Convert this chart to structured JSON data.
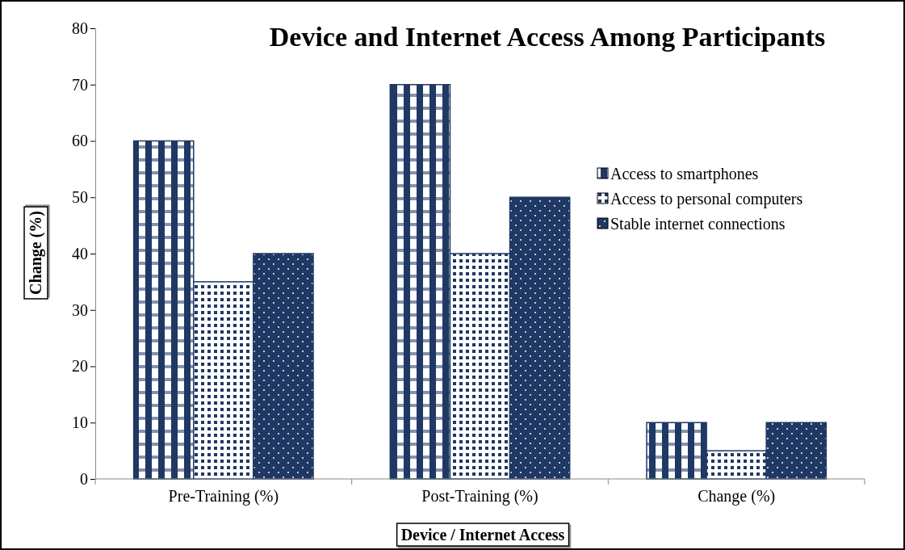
{
  "chart_data": {
    "type": "bar",
    "title": "Device and Internet Access Among Participants",
    "xlabel": "Device / Internet Access",
    "ylabel": "Change (%)",
    "categories": [
      "Pre-Training (%)",
      "Post-Training (%)",
      "Change (%)"
    ],
    "series": [
      {
        "name": "Access to smartphones",
        "color": "#1f3864",
        "values": [
          60,
          70,
          10
        ]
      },
      {
        "name": "Access to personal computers",
        "color": "#1f3864",
        "values": [
          35,
          40,
          5
        ]
      },
      {
        "name": "Stable internet connections",
        "color": "#1f3864",
        "values": [
          40,
          50,
          10
        ]
      }
    ],
    "ylim": [
      0,
      80
    ],
    "yticks": [
      0,
      10,
      20,
      30,
      40,
      50,
      60,
      70,
      80
    ],
    "grid": false,
    "legend": "right"
  }
}
